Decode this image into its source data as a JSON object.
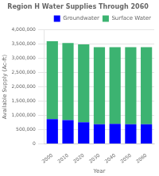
{
  "chart_data": {
    "type": "bar",
    "title": "Region H Water Supplies Through 2060",
    "xlabel": "Year",
    "ylabel": "Available Supply (Ac-ft)",
    "categories": [
      "2000",
      "2010",
      "2020",
      "2030",
      "2040",
      "2050",
      "2060"
    ],
    "series": [
      {
        "name": "Groundwater",
        "color": "#0000ff",
        "values": [
          870000,
          830000,
          760000,
          690000,
          700000,
          690000,
          690000
        ]
      },
      {
        "name": "Surface Water",
        "color": "#3cb371",
        "values": [
          2730000,
          2710000,
          2730000,
          2700000,
          2690000,
          2700000,
          2700000
        ]
      }
    ],
    "stacked": true,
    "ylim": [
      0,
      4000000
    ],
    "yticks": [
      0,
      {
        "value": 500000,
        "label": "500,000"
      },
      {
        "value": 1000000,
        "label": "1,000,000"
      },
      {
        "value": 1500000,
        "label": "1,500,000"
      },
      {
        "value": 2000000,
        "label": "2,000,000"
      },
      {
        "value": 2500000,
        "label": "2,500,000"
      },
      {
        "value": 3000000,
        "label": "3,000,000"
      },
      {
        "value": 3500000,
        "label": "3,500,000"
      },
      {
        "value": 4000000,
        "label": "4,000,000"
      }
    ],
    "grid": true,
    "legend": "upper right"
  }
}
